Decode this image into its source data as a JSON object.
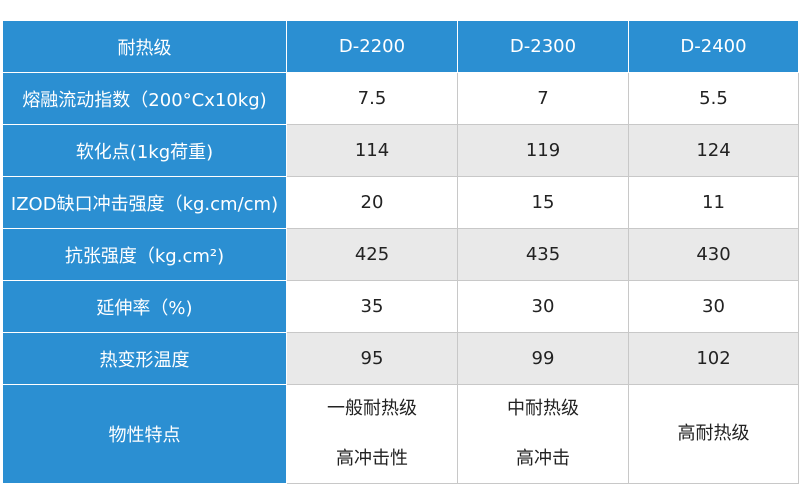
{
  "table": {
    "header": [
      "耐热级",
      "D-2200",
      "D-2300",
      "D-2400"
    ],
    "rows": [
      [
        "熔融流动指数（200°Cx10kg)",
        "7.5",
        "7",
        "5.5"
      ],
      [
        "软化点(1kg荷重)",
        "114",
        "119",
        "124"
      ],
      [
        "IZOD缺口冲击强度（kg.cm/cm)",
        "20",
        "15",
        "11"
      ],
      [
        "抗张强度（kg.cm²)",
        "425",
        "435",
        "430"
      ],
      [
        "延伸率（%)",
        "35",
        "30",
        "30"
      ],
      [
        "热变形温度",
        "95",
        "99",
        "102"
      ],
      [
        "物性特点",
        [
          "一般耐热级",
          "高冲击性"
        ],
        [
          "中耐热级",
          "高冲击"
        ],
        [
          "高耐热级"
        ]
      ]
    ]
  }
}
